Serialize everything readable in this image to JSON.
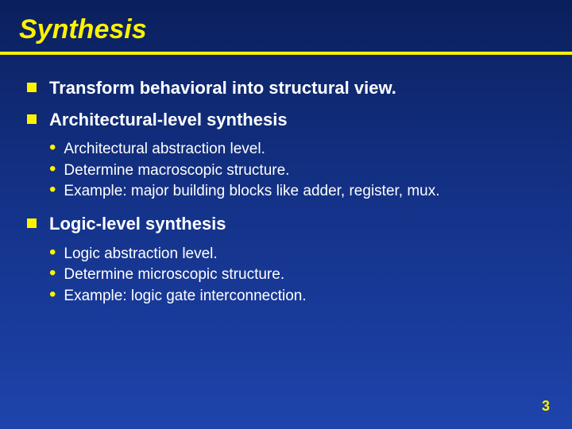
{
  "colors": {
    "title": "#fff200",
    "underline": "#fff200",
    "l1_bullet": "#fff200",
    "l2_bullet": "#fff200",
    "body_text": "#ffffff",
    "pagenum": "#fff200"
  },
  "title": "Synthesis",
  "items": [
    {
      "text": "Transform behavioral into structural view.",
      "sub": []
    },
    {
      "text": "Architectural-level synthesis",
      "sub": [
        "Architectural abstraction level.",
        "Determine macroscopic structure.",
        "Example: major building blocks like adder, register, mux."
      ]
    },
    {
      "text": "Logic-level synthesis",
      "sub": [
        "Logic abstraction level.",
        "Determine microscopic structure.",
        "Example: logic gate interconnection."
      ]
    }
  ],
  "page_number": "3"
}
